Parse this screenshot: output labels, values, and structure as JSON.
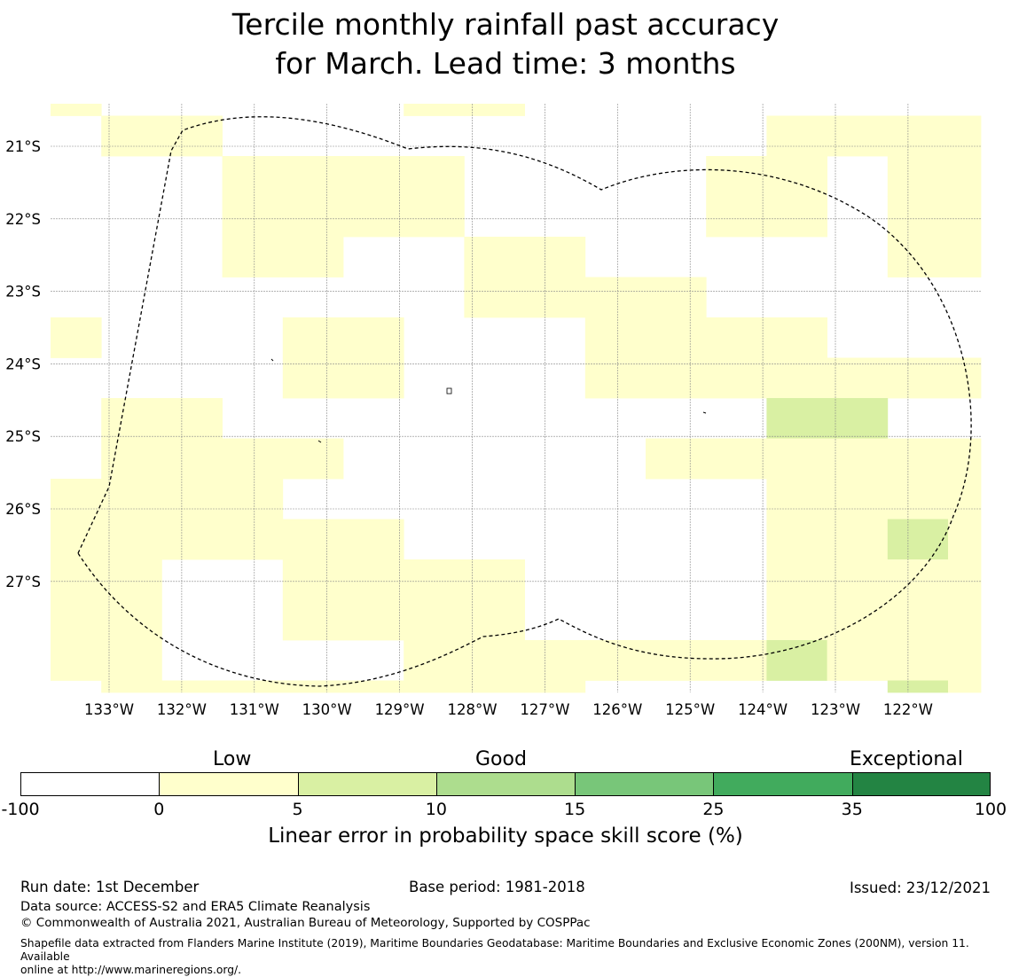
{
  "title": {
    "line1": "Tercile monthly rainfall past accuracy",
    "line2": "for March. Lead time: 3 months"
  },
  "map": {
    "lon_labels": [
      "133°W",
      "132°W",
      "131°W",
      "130°W",
      "129°W",
      "128°W",
      "127°W",
      "126°W",
      "125°W",
      "124°W",
      "123°W",
      "122°W"
    ],
    "lat_labels": [
      "21°S",
      "22°S",
      "23°S",
      "24°S",
      "25°S",
      "26°S",
      "27°S"
    ],
    "grid_values": [
      [
        1,
        0,
        0,
        0,
        0,
        0,
        1,
        1,
        0,
        0,
        0,
        0,
        0,
        0,
        0,
        0,
        0,
        0,
        0,
        0,
        0,
        0,
        0,
        1,
        1,
        1
      ],
      [
        0,
        1,
        1,
        0,
        0,
        0,
        0,
        0,
        0,
        0,
        0,
        0,
        1,
        1,
        1,
        1,
        0,
        0,
        0,
        0,
        0,
        0,
        0,
        0,
        0,
        1
      ],
      [
        0,
        0,
        0,
        1,
        1,
        1,
        1,
        0,
        0,
        0,
        0,
        1,
        1,
        0,
        1,
        1,
        0,
        0,
        0,
        0,
        0,
        0,
        0,
        0,
        0,
        0
      ],
      [
        0,
        0,
        0,
        1,
        1,
        1,
        1,
        0,
        0,
        0,
        0,
        1,
        1,
        0,
        1,
        1,
        0,
        0,
        0,
        0,
        0,
        0,
        0,
        0,
        0,
        0
      ],
      [
        0,
        0,
        0,
        1,
        1,
        0,
        0,
        1,
        1,
        0,
        0,
        0,
        0,
        0,
        1,
        1,
        1,
        1,
        0,
        0,
        0,
        0,
        0,
        0,
        0,
        0
      ],
      [
        0,
        0,
        0,
        0,
        0,
        0,
        0,
        1,
        1,
        1,
        1,
        0,
        0,
        0,
        0,
        0,
        1,
        1,
        1,
        1,
        0,
        0,
        0,
        0,
        0,
        0
      ],
      [
        1,
        0,
        0,
        0,
        1,
        1,
        0,
        0,
        0,
        1,
        1,
        1,
        1,
        0,
        0,
        0,
        1,
        1,
        1,
        1,
        0,
        0,
        0,
        0,
        0,
        0
      ],
      [
        0,
        0,
        0,
        0,
        1,
        1,
        0,
        0,
        0,
        1,
        1,
        1,
        1,
        1,
        1,
        1,
        0,
        0,
        1,
        1,
        1,
        0,
        0,
        0,
        0,
        0
      ],
      [
        0,
        1,
        1,
        0,
        0,
        0,
        0,
        0,
        0,
        0,
        0,
        0,
        2,
        2,
        0,
        0,
        1,
        1,
        1,
        1,
        0,
        0,
        0,
        0,
        0,
        0
      ],
      [
        0,
        1,
        1,
        1,
        1,
        0,
        0,
        0,
        0,
        0,
        1,
        1,
        1,
        1,
        1,
        1,
        1,
        1,
        0,
        2,
        2,
        1,
        0,
        0,
        0,
        0
      ],
      [
        1,
        1,
        1,
        1,
        0,
        0,
        0,
        0,
        0,
        0,
        0,
        0,
        1,
        1,
        1,
        1,
        0,
        1,
        1,
        1,
        1,
        1,
        0,
        0,
        0,
        0
      ],
      [
        1,
        1,
        1,
        1,
        1,
        1,
        0,
        0,
        0,
        0,
        0,
        0,
        1,
        1,
        2,
        1,
        1,
        1,
        1,
        1,
        0,
        0,
        0,
        0,
        0,
        0
      ],
      [
        1,
        1,
        0,
        0,
        1,
        1,
        1,
        1,
        0,
        0,
        0,
        0,
        1,
        1,
        1,
        1,
        1,
        1,
        1,
        1,
        1,
        1,
        1,
        1,
        1,
        1
      ],
      [
        1,
        1,
        0,
        0,
        1,
        1,
        1,
        1,
        0,
        0,
        0,
        0,
        1,
        1,
        1,
        1,
        1,
        1,
        1,
        1,
        1,
        0,
        0,
        0,
        0,
        1
      ],
      [
        1,
        1,
        0,
        0,
        0,
        0,
        1,
        1,
        1,
        1,
        1,
        1,
        2,
        1,
        1,
        1,
        1,
        1,
        1,
        1,
        1,
        1,
        1,
        0,
        0,
        0
      ],
      [
        0,
        1,
        1,
        1,
        1,
        1,
        1,
        1,
        1,
        0,
        0,
        0,
        0,
        0,
        2,
        1,
        0,
        0,
        0,
        1,
        0,
        0,
        0,
        0,
        0,
        1
      ]
    ]
  },
  "colorbar": {
    "category_labels": [
      "Low",
      "Good",
      "Exceptional"
    ],
    "ticks": [
      "-100",
      "0",
      "5",
      "10",
      "15",
      "25",
      "35",
      "100"
    ],
    "colors": [
      "#ffffff",
      "#ffffcc",
      "#d9f0a3",
      "#addd8e",
      "#78c679",
      "#41ab5d",
      "#238443"
    ],
    "axis_label": "Linear error in probability space skill score (%)"
  },
  "footer": {
    "run_date": "Run date: 1st December",
    "base_period": "Base period: 1981-2018",
    "issued": "Issued: 23/12/2021",
    "data_source": "Data source: ACCESS-S2 and ERA5 Climate Reanalysis",
    "copyright": "© Commonwealth of Australia 2021, Australian Bureau of Meteorology, Supported by COSPPac",
    "shapefile_line1": "Shapefile data extracted from Flanders Marine Institute (2019), Maritime Boundaries Geodatabase: Maritime Boundaries and Exclusive Economic Zones (200NM), version 11. Available",
    "shapefile_line2": "online at http://www.marineregions.org/."
  }
}
